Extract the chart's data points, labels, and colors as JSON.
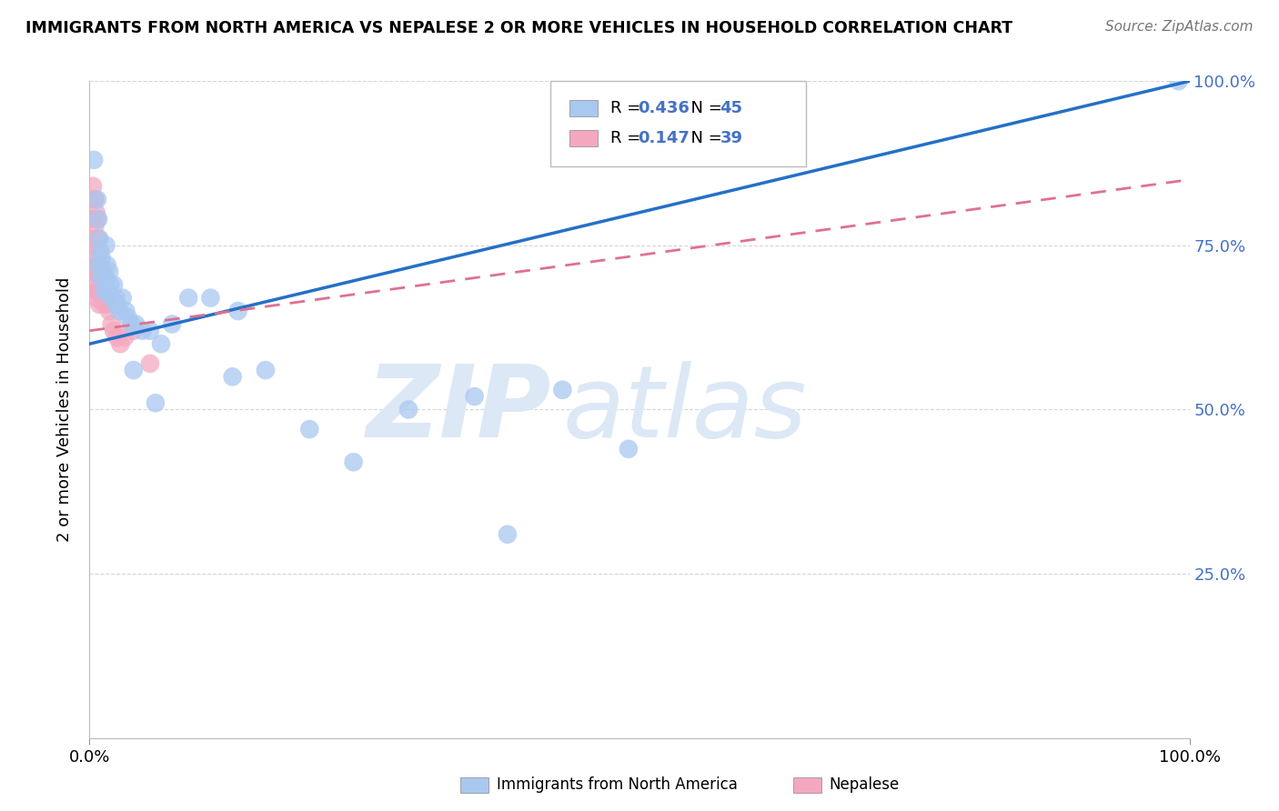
{
  "title": "IMMIGRANTS FROM NORTH AMERICA VS NEPALESE 2 OR MORE VEHICLES IN HOUSEHOLD CORRELATION CHART",
  "source": "Source: ZipAtlas.com",
  "ylabel": "2 or more Vehicles in Household",
  "xmin": 0.0,
  "xmax": 1.0,
  "ymin": 0.0,
  "ymax": 1.0,
  "blue_R": 0.436,
  "blue_N": 45,
  "pink_R": 0.147,
  "pink_N": 39,
  "blue_line_y0": 0.6,
  "blue_line_y1": 1.0,
  "pink_line_y0": 0.62,
  "pink_line_y1": 0.85,
  "blue_scatter_x": [
    0.004,
    0.007,
    0.008,
    0.008,
    0.009,
    0.01,
    0.01,
    0.011,
    0.012,
    0.013,
    0.015,
    0.015,
    0.016,
    0.017,
    0.018,
    0.019,
    0.02,
    0.022,
    0.024,
    0.025,
    0.027,
    0.03,
    0.033,
    0.035,
    0.038,
    0.042,
    0.048,
    0.055,
    0.065,
    0.075,
    0.09,
    0.11,
    0.135,
    0.16,
    0.2,
    0.24,
    0.29,
    0.35,
    0.43,
    0.49,
    0.38,
    0.06,
    0.04,
    0.13,
    0.99
  ],
  "blue_scatter_y": [
    0.88,
    0.82,
    0.79,
    0.72,
    0.76,
    0.7,
    0.74,
    0.73,
    0.71,
    0.68,
    0.75,
    0.7,
    0.72,
    0.68,
    0.71,
    0.69,
    0.67,
    0.69,
    0.67,
    0.66,
    0.65,
    0.67,
    0.65,
    0.64,
    0.63,
    0.63,
    0.62,
    0.62,
    0.6,
    0.63,
    0.67,
    0.67,
    0.65,
    0.56,
    0.47,
    0.42,
    0.5,
    0.52,
    0.53,
    0.44,
    0.31,
    0.51,
    0.56,
    0.55,
    1.0
  ],
  "pink_scatter_x": [
    0.003,
    0.003,
    0.004,
    0.004,
    0.004,
    0.005,
    0.005,
    0.005,
    0.005,
    0.006,
    0.006,
    0.006,
    0.006,
    0.007,
    0.007,
    0.007,
    0.007,
    0.008,
    0.008,
    0.008,
    0.009,
    0.009,
    0.009,
    0.01,
    0.01,
    0.011,
    0.012,
    0.013,
    0.014,
    0.015,
    0.016,
    0.018,
    0.02,
    0.022,
    0.025,
    0.028,
    0.032,
    0.04,
    0.055
  ],
  "pink_scatter_y": [
    0.84,
    0.79,
    0.82,
    0.76,
    0.71,
    0.82,
    0.78,
    0.73,
    0.69,
    0.8,
    0.76,
    0.72,
    0.68,
    0.79,
    0.75,
    0.71,
    0.67,
    0.76,
    0.72,
    0.68,
    0.74,
    0.7,
    0.66,
    0.72,
    0.68,
    0.7,
    0.68,
    0.66,
    0.7,
    0.67,
    0.66,
    0.65,
    0.63,
    0.62,
    0.61,
    0.6,
    0.61,
    0.62,
    0.57
  ],
  "blue_color": "#a8c8f0",
  "pink_color": "#f4a8c0",
  "blue_line_color": "#2470c8",
  "pink_line_color": "#e07090",
  "grid_color": "#cccccc",
  "watermark_color": "#dce8f5",
  "background_color": "#ffffff",
  "right_tick_color": "#4472c4",
  "yticks": [
    0.25,
    0.5,
    0.75,
    1.0
  ],
  "ytick_labels": [
    "25.0%",
    "50.0%",
    "75.0%",
    "100.0%"
  ]
}
